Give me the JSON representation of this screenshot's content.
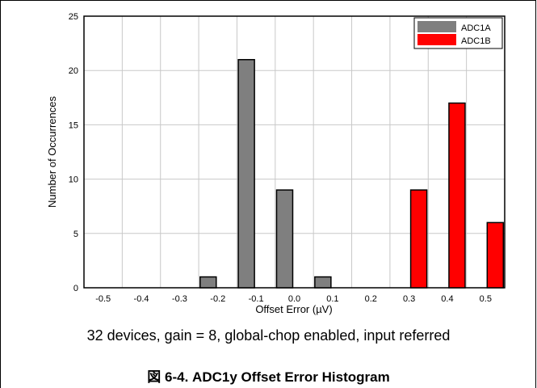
{
  "chart_data": {
    "type": "bar",
    "x": [
      -0.5,
      -0.4,
      -0.3,
      -0.2,
      -0.1,
      0.0,
      0.1,
      0.2,
      0.3,
      0.4,
      0.5
    ],
    "x_tick_labels": [
      "-0.5",
      "-0.4",
      "-0.3",
      "-0.2",
      "-0.1",
      "0.0",
      "0.1",
      "0.2",
      "0.3",
      "0.4",
      "0.5"
    ],
    "y_ticks": [
      0,
      5,
      10,
      15,
      20,
      25
    ],
    "series": [
      {
        "name": "ADC1A",
        "color": "#7f7f7f",
        "points": [
          {
            "x": -0.2,
            "y": 1
          },
          {
            "x": -0.1,
            "y": 21
          },
          {
            "x": 0.0,
            "y": 9
          },
          {
            "x": 0.1,
            "y": 1
          }
        ]
      },
      {
        "name": "ADC1B",
        "color": "#ff0000",
        "points": [
          {
            "x": 0.3,
            "y": 9
          },
          {
            "x": 0.4,
            "y": 17
          },
          {
            "x": 0.5,
            "y": 6
          }
        ]
      }
    ],
    "xlabel": "Offset Error (µV)",
    "ylabel": "Number of Occurrences",
    "ylim": [
      0,
      25
    ],
    "grid": true,
    "legend_position": "top-right"
  },
  "note": "32 devices, gain = 8, global-chop enabled, input referred",
  "figure_title": "図 6-4. ADC1y Offset Error Histogram"
}
